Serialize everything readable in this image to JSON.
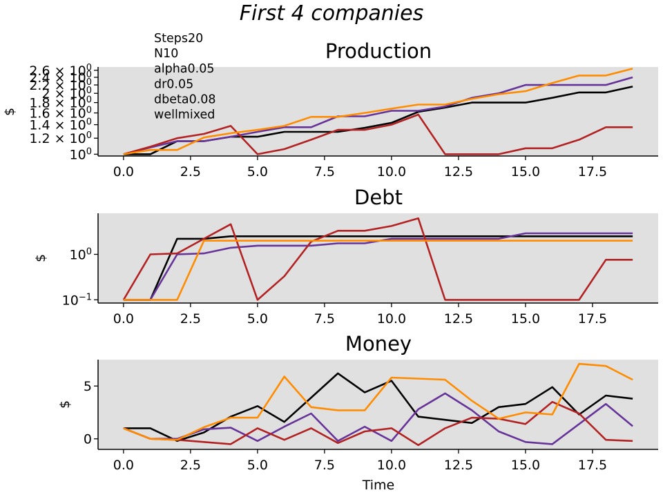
{
  "figure": {
    "title": "First 4 companies",
    "xlabel": "Time",
    "params": [
      "Steps20",
      "N10",
      "alpha0.05",
      "dr0.05",
      "dbeta0.08",
      "wellmixed"
    ]
  },
  "colors": {
    "background": "#e0e0e0",
    "series": [
      "#000000",
      "#663399",
      "#b22222",
      "#ff8c00"
    ]
  },
  "chart_data": [
    {
      "type": "line",
      "title": "Production",
      "ylabel": "$",
      "yscale": "log",
      "xlim": [
        -0.95,
        19.95
      ],
      "ylim": [
        0.98,
        2.7
      ],
      "xticks": [
        0,
        2.5,
        5,
        7.5,
        10,
        12.5,
        15,
        17.5
      ],
      "xtick_labels": [
        "0.0",
        "2.5",
        "5.0",
        "7.5",
        "10.0",
        "12.5",
        "15.0",
        "17.5"
      ],
      "yticks": [
        1.0,
        1.2,
        1.4,
        1.6,
        1.8,
        2.0,
        2.2,
        2.4,
        2.6
      ],
      "ytick_labels": [
        {
          "base": "10",
          "exp": "0",
          "pre": ""
        },
        {
          "base": "10",
          "exp": "0",
          "pre": "1.2 × "
        },
        {
          "base": "10",
          "exp": "0",
          "pre": "1.4 × "
        },
        {
          "base": "10",
          "exp": "0",
          "pre": "1.6 × "
        },
        {
          "base": "10",
          "exp": "0",
          "pre": "1.8 × "
        },
        {
          "base": "10",
          "exp": "0",
          "pre": "2 × "
        },
        {
          "base": "10",
          "exp": "0",
          "pre": "2.2 × "
        },
        {
          "base": "10",
          "exp": "0",
          "pre": "2.4 × "
        },
        {
          "base": "10",
          "exp": "0",
          "pre": "2.6 × "
        }
      ],
      "x": [
        0,
        1,
        2,
        3,
        4,
        5,
        6,
        7,
        8,
        9,
        10,
        11,
        12,
        13,
        14,
        15,
        16,
        17,
        18,
        19
      ],
      "series": [
        {
          "values": [
            1.0,
            1.0,
            1.16,
            1.16,
            1.22,
            1.22,
            1.29,
            1.29,
            1.29,
            1.35,
            1.43,
            1.62,
            1.7,
            1.8,
            1.8,
            1.8,
            1.9,
            2.02,
            2.02,
            2.16
          ]
        },
        {
          "values": [
            1.0,
            1.08,
            1.16,
            1.16,
            1.22,
            1.29,
            1.36,
            1.36,
            1.54,
            1.54,
            1.64,
            1.64,
            1.72,
            1.9,
            2.0,
            2.2,
            2.2,
            2.2,
            2.2,
            2.4
          ]
        },
        {
          "values": [
            1.0,
            1.09,
            1.2,
            1.26,
            1.38,
            1.0,
            1.06,
            1.18,
            1.32,
            1.32,
            1.4,
            1.57,
            1.0,
            1.0,
            1.0,
            1.07,
            1.07,
            1.18,
            1.36,
            1.36
          ]
        },
        {
          "values": [
            1.0,
            1.05,
            1.05,
            1.21,
            1.27,
            1.32,
            1.38,
            1.53,
            1.53,
            1.6,
            1.68,
            1.76,
            1.76,
            1.88,
            1.98,
            2.05,
            2.25,
            2.45,
            2.45,
            2.65
          ]
        }
      ]
    },
    {
      "type": "line",
      "title": "Debt",
      "ylabel": "$",
      "yscale": "log",
      "xlim": [
        -0.95,
        19.95
      ],
      "ylim": [
        0.085,
        8.0
      ],
      "xticks": [
        0,
        2.5,
        5,
        7.5,
        10,
        12.5,
        15,
        17.5
      ],
      "xtick_labels": [
        "0.0",
        "2.5",
        "5.0",
        "7.5",
        "10.0",
        "12.5",
        "15.0",
        "17.5"
      ],
      "yticks": [
        0.1,
        1.0
      ],
      "ytick_labels": [
        {
          "base": "10",
          "exp": "−1",
          "pre": ""
        },
        {
          "base": "10",
          "exp": "0",
          "pre": ""
        }
      ],
      "x": [
        0,
        1,
        2,
        3,
        4,
        5,
        6,
        7,
        8,
        9,
        10,
        11,
        12,
        13,
        14,
        15,
        16,
        17,
        18,
        19
      ],
      "series": [
        {
          "values": [
            0.1,
            0.1,
            2.2,
            2.2,
            2.5,
            2.5,
            2.5,
            2.5,
            2.5,
            2.5,
            2.5,
            2.5,
            2.5,
            2.5,
            2.5,
            2.5,
            2.5,
            2.5,
            2.5,
            2.5
          ]
        },
        {
          "values": [
            0.1,
            0.1,
            1.0,
            1.05,
            1.4,
            1.55,
            1.55,
            1.55,
            1.75,
            1.75,
            2.2,
            2.2,
            2.2,
            2.2,
            2.2,
            2.9,
            2.9,
            2.9,
            2.9,
            2.9
          ]
        },
        {
          "values": [
            0.1,
            1.0,
            1.05,
            2.2,
            4.6,
            0.1,
            0.33,
            1.9,
            3.3,
            3.3,
            4.2,
            6.2,
            0.1,
            0.1,
            0.1,
            0.1,
            0.1,
            0.1,
            0.76,
            0.76
          ]
        },
        {
          "values": [
            0.1,
            0.1,
            0.1,
            2.0,
            2.0,
            2.0,
            2.0,
            2.0,
            2.0,
            2.0,
            2.0,
            2.0,
            2.0,
            2.0,
            2.0,
            2.0,
            2.0,
            2.0,
            2.0,
            2.0
          ]
        }
      ]
    },
    {
      "type": "line",
      "title": "Money",
      "ylabel": "$",
      "yscale": "linear",
      "xlim": [
        -0.95,
        19.95
      ],
      "ylim": [
        -1.0,
        7.5
      ],
      "xticks": [
        0,
        2.5,
        5,
        7.5,
        10,
        12.5,
        15,
        17.5
      ],
      "xtick_labels": [
        "0.0",
        "2.5",
        "5.0",
        "7.5",
        "10.0",
        "12.5",
        "15.0",
        "17.5"
      ],
      "yticks": [
        0,
        5
      ],
      "ytick_labels": [
        {
          "pre": "0"
        },
        {
          "pre": "5"
        }
      ],
      "x": [
        0,
        1,
        2,
        3,
        4,
        5,
        6,
        7,
        8,
        9,
        10,
        11,
        12,
        13,
        14,
        15,
        16,
        17,
        18,
        19
      ],
      "series": [
        {
          "values": [
            1.0,
            1.0,
            -0.2,
            0.6,
            2.1,
            3.1,
            1.6,
            3.9,
            6.2,
            4.4,
            5.5,
            2.1,
            1.8,
            1.5,
            3.0,
            3.3,
            4.9,
            2.3,
            4.1,
            3.8
          ]
        },
        {
          "values": [
            1.0,
            0.0,
            0.0,
            0.9,
            1.05,
            -0.2,
            1.15,
            2.4,
            -0.2,
            1.15,
            -0.2,
            2.8,
            4.3,
            2.7,
            0.7,
            -0.3,
            -0.5,
            1.4,
            3.3,
            1.2
          ]
        },
        {
          "values": [
            1.0,
            0.0,
            -0.1,
            -0.3,
            -0.5,
            1.0,
            -0.1,
            1.0,
            -0.4,
            0.7,
            1.0,
            -0.6,
            1.0,
            2.0,
            1.9,
            1.4,
            3.5,
            2.4,
            -0.1,
            -0.2
          ]
        },
        {
          "values": [
            1.0,
            0.0,
            -0.1,
            1.1,
            2.0,
            2.0,
            5.9,
            3.0,
            2.7,
            2.7,
            5.8,
            5.7,
            5.6,
            3.6,
            1.9,
            2.5,
            2.3,
            7.1,
            6.9,
            5.6
          ]
        }
      ]
    }
  ]
}
